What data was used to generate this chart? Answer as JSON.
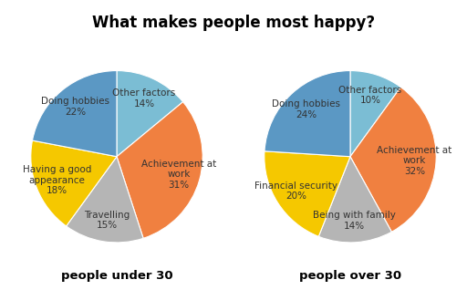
{
  "title": "What makes people most happy?",
  "pie1": {
    "label": "people under 30",
    "slices": [
      "Other factors\n14%",
      "Achievement at\nwork\n31%",
      "Travelling\n15%",
      "Having a good\nappearance\n18%",
      "Doing hobbies\n22%"
    ],
    "values": [
      14,
      31,
      15,
      18,
      22
    ],
    "colors": [
      "#7bbdd4",
      "#f08040",
      "#b5b5b5",
      "#f5c800",
      "#5b98c4"
    ],
    "startangle": 90
  },
  "pie2": {
    "label": "people over 30",
    "slices": [
      "Other factors\n10%",
      "Achievement at\nwork\n32%",
      "Being with family\n14%",
      "Financial security\n20%",
      "Doing hobbies\n24%"
    ],
    "values": [
      10,
      32,
      14,
      20,
      24
    ],
    "colors": [
      "#7bbdd4",
      "#f08040",
      "#b5b5b5",
      "#f5c800",
      "#5b98c4"
    ],
    "startangle": 90
  },
  "background_color": "#ffffff",
  "title_fontsize": 12,
  "label_fontsize": 7.5,
  "sublabel_fontsize": 9.5
}
